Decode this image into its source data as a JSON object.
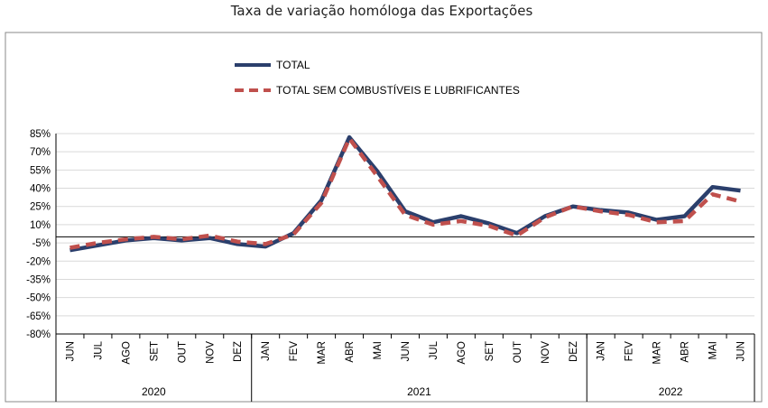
{
  "chart_data": {
    "type": "line",
    "title": "Taxa de variação homóloga das Exportações",
    "xlabel": "",
    "ylabel": "",
    "ylim": [
      -80,
      85
    ],
    "yticks": [
      "85%",
      "70%",
      "55%",
      "40%",
      "25%",
      "10%",
      "-5%",
      "-20%",
      "-35%",
      "-50%",
      "-65%",
      "-80%"
    ],
    "ytick_values": [
      85,
      70,
      55,
      40,
      25,
      10,
      -5,
      -20,
      -35,
      -50,
      -65,
      -80
    ],
    "categories": [
      "JUN",
      "JUL",
      "AGO",
      "SET",
      "OUT",
      "NOV",
      "DEZ",
      "JAN",
      "FEV",
      "MAR",
      "ABR",
      "MAI",
      "JUN",
      "JUL",
      "AGO",
      "SET",
      "OUT",
      "NOV",
      "DEZ",
      "JAN",
      "FEV",
      "MAR",
      "ABR",
      "MAI",
      "JUN"
    ],
    "year_groups": [
      {
        "label": "2020",
        "start": 0,
        "end": 6
      },
      {
        "label": "2021",
        "start": 7,
        "end": 18
      },
      {
        "label": "2022",
        "start": 19,
        "end": 24
      }
    ],
    "series": [
      {
        "name": "TOTAL",
        "color": "#2b3f6c",
        "style": "solid",
        "values": [
          -11,
          -7,
          -3,
          -1,
          -3,
          -1,
          -6,
          -8,
          3,
          30,
          82,
          54,
          21,
          12,
          17,
          11,
          3,
          17,
          25,
          22,
          20,
          14,
          17,
          41,
          38
        ]
      },
      {
        "name": "TOTAL SEM COMBUSTÍVEIS E LUBRIFICANTES",
        "color": "#c0504d",
        "style": "dashed",
        "values": [
          -9,
          -5,
          -2,
          0,
          -2,
          1,
          -4,
          -6,
          2,
          28,
          81,
          50,
          18,
          10,
          13,
          9,
          1,
          16,
          25,
          21,
          18,
          12,
          13,
          35,
          29
        ]
      }
    ],
    "legend_position": "top-center",
    "grid": true
  }
}
